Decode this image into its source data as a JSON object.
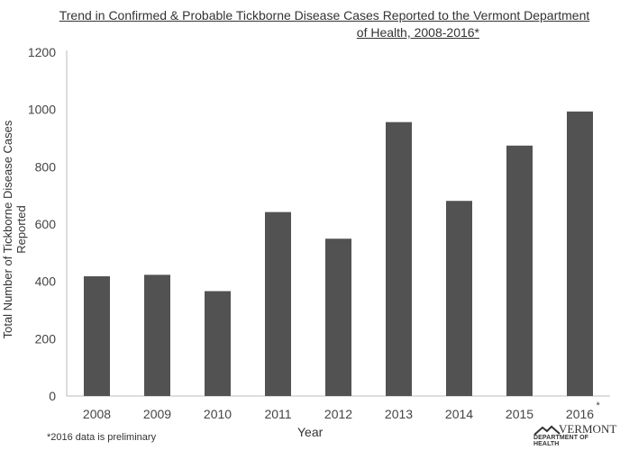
{
  "chart_data": {
    "type": "bar",
    "title_line1": "Trend in Confirmed & Probable Tickborne Disease Cases Reported to the Vermont Department",
    "title_line2": "of Health, 2008-2016*",
    "xlabel": "Year",
    "ylabel": "Total Number of Tickborne Disease Cases Reported",
    "categories": [
      "2008",
      "2009",
      "2010",
      "2011",
      "2012",
      "2013",
      "2014",
      "2015",
      "2016"
    ],
    "category_marks": [
      "",
      "",
      "",
      "",
      "",
      "",
      "",
      "",
      "*"
    ],
    "values": [
      418,
      423,
      366,
      642,
      549,
      956,
      681,
      874,
      993
    ],
    "ylim": [
      0,
      1200
    ],
    "yticks": [
      0,
      200,
      400,
      600,
      800,
      1000,
      1200
    ],
    "grid": false,
    "bar_color": "#525252",
    "footnote": "*2016 data is preliminary"
  },
  "logo": {
    "line1": "VERMONT",
    "line2": "DEPARTMENT OF HEALTH"
  }
}
